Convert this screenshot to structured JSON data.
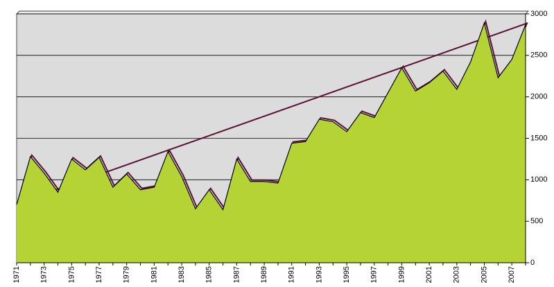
{
  "chart_data": {
    "type": "area",
    "categories": [
      "1971",
      null,
      "1973",
      null,
      "1975",
      null,
      "1977",
      null,
      "1979",
      null,
      "1981",
      null,
      "1983",
      null,
      "1985",
      null,
      "1987",
      null,
      "1989",
      null,
      "1991",
      null,
      "1993",
      null,
      "1995",
      null,
      "1997",
      null,
      "1999",
      null,
      "2001",
      null,
      "2003",
      null,
      "2005",
      null,
      "2007",
      null
    ],
    "series": [
      {
        "color": "#b5d334",
        "values": [
          700,
          1280,
          1080,
          850,
          1250,
          1120,
          1270,
          910,
          1070,
          880,
          910,
          1340,
          1040,
          650,
          880,
          640,
          1250,
          980,
          980,
          960,
          1440,
          1460,
          1730,
          1700,
          1580,
          1810,
          1750,
          2050,
          2350,
          2070,
          2170,
          2310,
          2090,
          2420,
          2890,
          2230,
          2450,
          2870
        ]
      }
    ],
    "ylim": [
      0,
      3000
    ],
    "yticks": [
      0,
      500,
      1000,
      1500,
      2000,
      2500,
      3000
    ],
    "grid": true,
    "y_axis_side": "right",
    "plot_background": "#dcdcdc"
  }
}
